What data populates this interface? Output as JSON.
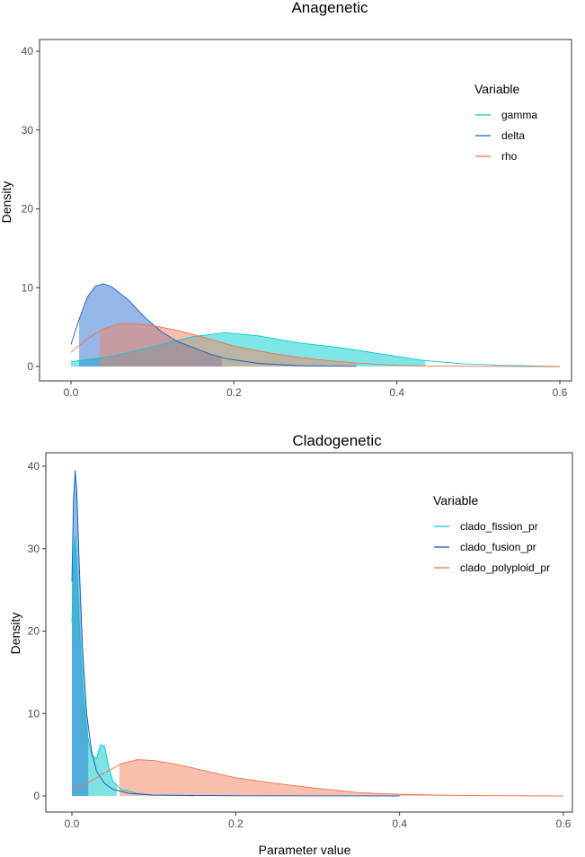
{
  "xlabel_shared": "Parameter value",
  "chart_data": [
    {
      "type": "area",
      "title": "Anagenetic",
      "ylabel": "Density",
      "xlim": [
        0,
        0.6
      ],
      "ylim": [
        0,
        40
      ],
      "x_ticks": [
        "0.0",
        "0.2",
        "0.4",
        "0.6"
      ],
      "x_tick_values": [
        0,
        0.2,
        0.4,
        0.6
      ],
      "y_ticks": [
        "0",
        "10",
        "20",
        "30",
        "40"
      ],
      "y_tick_values": [
        0,
        10,
        20,
        30,
        40
      ],
      "legend": {
        "title": "Variable",
        "placement": "right"
      },
      "series": [
        {
          "name": "gamma",
          "color": "#00CED1",
          "fill": "#00CED1",
          "fill_range": [
            0.0,
            0.435
          ],
          "points": [
            [
              0.0,
              0.6
            ],
            [
              0.05,
              1.3
            ],
            [
              0.1,
              2.5
            ],
            [
              0.15,
              3.8
            ],
            [
              0.19,
              4.3
            ],
            [
              0.23,
              3.9
            ],
            [
              0.28,
              3.0
            ],
            [
              0.33,
              2.4
            ],
            [
              0.38,
              1.6
            ],
            [
              0.43,
              0.8
            ],
            [
              0.48,
              0.35
            ],
            [
              0.53,
              0.15
            ],
            [
              0.58,
              0.05
            ],
            [
              0.6,
              0.02
            ]
          ]
        },
        {
          "name": "delta",
          "color": "#1F5FBF",
          "fill": "#2E6FD0",
          "fill_range": [
            0.01,
            0.185
          ],
          "points": [
            [
              0.0,
              2.8
            ],
            [
              0.01,
              6.0
            ],
            [
              0.02,
              8.8
            ],
            [
              0.03,
              10.2
            ],
            [
              0.04,
              10.5
            ],
            [
              0.05,
              10.1
            ],
            [
              0.07,
              8.5
            ],
            [
              0.09,
              6.3
            ],
            [
              0.11,
              4.5
            ],
            [
              0.13,
              3.2
            ],
            [
              0.15,
              2.4
            ],
            [
              0.17,
              1.6
            ],
            [
              0.19,
              1.0
            ],
            [
              0.23,
              0.4
            ],
            [
              0.28,
              0.1
            ],
            [
              0.35,
              0.02
            ]
          ]
        },
        {
          "name": "rho",
          "color": "#F4714E",
          "fill": "#F4815E",
          "fill_range": [
            0.035,
            0.35
          ],
          "points": [
            [
              0.0,
              1.8
            ],
            [
              0.02,
              3.5
            ],
            [
              0.04,
              4.8
            ],
            [
              0.06,
              5.4
            ],
            [
              0.08,
              5.4
            ],
            [
              0.1,
              5.2
            ],
            [
              0.13,
              4.6
            ],
            [
              0.16,
              3.8
            ],
            [
              0.2,
              2.6
            ],
            [
              0.25,
              1.6
            ],
            [
              0.3,
              0.9
            ],
            [
              0.35,
              0.45
            ],
            [
              0.4,
              0.15
            ],
            [
              0.45,
              0.05
            ],
            [
              0.5,
              0.02
            ],
            [
              0.6,
              0.0
            ]
          ]
        }
      ]
    },
    {
      "type": "area",
      "title": "Cladogenetic",
      "ylabel": "Density",
      "xlim": [
        0,
        0.6
      ],
      "ylim": [
        0,
        40
      ],
      "x_ticks": [
        "0.0",
        "0.2",
        "0.4",
        "0.6"
      ],
      "x_tick_values": [
        0,
        0.2,
        0.4,
        0.6
      ],
      "y_ticks": [
        "0",
        "10",
        "20",
        "30",
        "40"
      ],
      "y_tick_values": [
        0,
        10,
        20,
        30,
        40
      ],
      "legend": {
        "title": "Variable",
        "placement": "right"
      },
      "series": [
        {
          "name": "clado_fission_pr",
          "color": "#00C8C8",
          "fill": "#00C8C8",
          "fill_range": [
            0.0,
            0.055
          ],
          "points": [
            [
              0.0,
              21.0
            ],
            [
              0.002,
              29.0
            ],
            [
              0.004,
              31.5
            ],
            [
              0.006,
              28.0
            ],
            [
              0.009,
              21.0
            ],
            [
              0.013,
              13.0
            ],
            [
              0.018,
              8.0
            ],
            [
              0.024,
              5.0
            ],
            [
              0.03,
              4.5
            ],
            [
              0.035,
              6.2
            ],
            [
              0.04,
              6.0
            ],
            [
              0.045,
              3.5
            ],
            [
              0.05,
              1.8
            ],
            [
              0.06,
              0.8
            ],
            [
              0.08,
              0.3
            ],
            [
              0.1,
              0.1
            ],
            [
              0.15,
              0.02
            ]
          ]
        },
        {
          "name": "clado_fusion_pr",
          "color": "#0A55C0",
          "fill": "#1E78D0",
          "fill_range": [
            0.0,
            0.02
          ],
          "points": [
            [
              0.0,
              26.0
            ],
            [
              0.002,
              36.0
            ],
            [
              0.004,
              39.5
            ],
            [
              0.006,
              37.0
            ],
            [
              0.009,
              28.0
            ],
            [
              0.013,
              18.0
            ],
            [
              0.018,
              10.0
            ],
            [
              0.024,
              5.5
            ],
            [
              0.03,
              3.0
            ],
            [
              0.04,
              1.5
            ],
            [
              0.05,
              0.8
            ],
            [
              0.07,
              0.3
            ],
            [
              0.1,
              0.1
            ],
            [
              0.2,
              0.02
            ],
            [
              0.4,
              0.0
            ]
          ]
        },
        {
          "name": "clado_polyploid_pr",
          "color": "#F4714E",
          "fill": "#F4815E",
          "fill_range": [
            0.058,
            0.6
          ],
          "points": [
            [
              0.0,
              0.8
            ],
            [
              0.02,
              1.6
            ],
            [
              0.04,
              2.8
            ],
            [
              0.06,
              3.9
            ],
            [
              0.08,
              4.4
            ],
            [
              0.1,
              4.3
            ],
            [
              0.13,
              3.8
            ],
            [
              0.16,
              3.1
            ],
            [
              0.2,
              2.2
            ],
            [
              0.25,
              1.5
            ],
            [
              0.3,
              0.9
            ],
            [
              0.35,
              0.4
            ],
            [
              0.4,
              0.2
            ],
            [
              0.45,
              0.1
            ],
            [
              0.5,
              0.04
            ],
            [
              0.6,
              0.0
            ]
          ]
        }
      ]
    }
  ]
}
